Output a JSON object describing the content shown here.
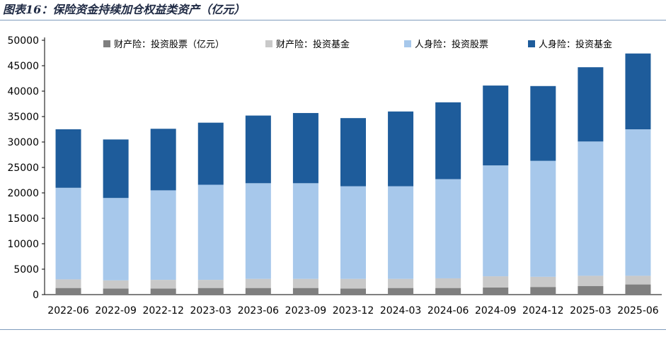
{
  "figure": {
    "title": "图表16：保险资金持续加仓权益类资产（亿元）"
  },
  "chart_data": {
    "type": "bar",
    "stacked": true,
    "title": "",
    "xlabel": "",
    "ylabel": "",
    "ylim": [
      0,
      50000
    ],
    "yticks": [
      0,
      5000,
      10000,
      15000,
      20000,
      25000,
      30000,
      35000,
      40000,
      45000,
      50000
    ],
    "grid": false,
    "legend_position": "top",
    "categories": [
      "2022-06",
      "2022-09",
      "2022-12",
      "2023-03",
      "2023-06",
      "2023-09",
      "2023-12",
      "2024-03",
      "2024-06",
      "2024-09",
      "2024-12",
      "2025-03",
      "2025-06"
    ],
    "series": [
      {
        "name": "财产险：投资股票（亿元）",
        "color": "#7f7f7f",
        "values": [
          1300,
          1200,
          1200,
          1300,
          1300,
          1300,
          1200,
          1300,
          1300,
          1400,
          1500,
          1700,
          2000
        ]
      },
      {
        "name": "财产险：投资基金",
        "color": "#c9c9c9",
        "values": [
          1700,
          1600,
          1700,
          1600,
          1800,
          1800,
          1900,
          1800,
          1900,
          2200,
          2000,
          2000,
          1700
        ]
      },
      {
        "name": "人身险：投资股票",
        "color": "#a7c8eb",
        "values": [
          18000,
          16200,
          17600,
          18700,
          18800,
          18800,
          18200,
          18200,
          19500,
          21800,
          22800,
          26400,
          28800
        ]
      },
      {
        "name": "人身险：投资基金",
        "color": "#1e5c9b",
        "values": [
          11500,
          11500,
          12100,
          12200,
          13300,
          13800,
          13400,
          14700,
          15100,
          15700,
          14700,
          14600,
          14900
        ]
      }
    ]
  }
}
